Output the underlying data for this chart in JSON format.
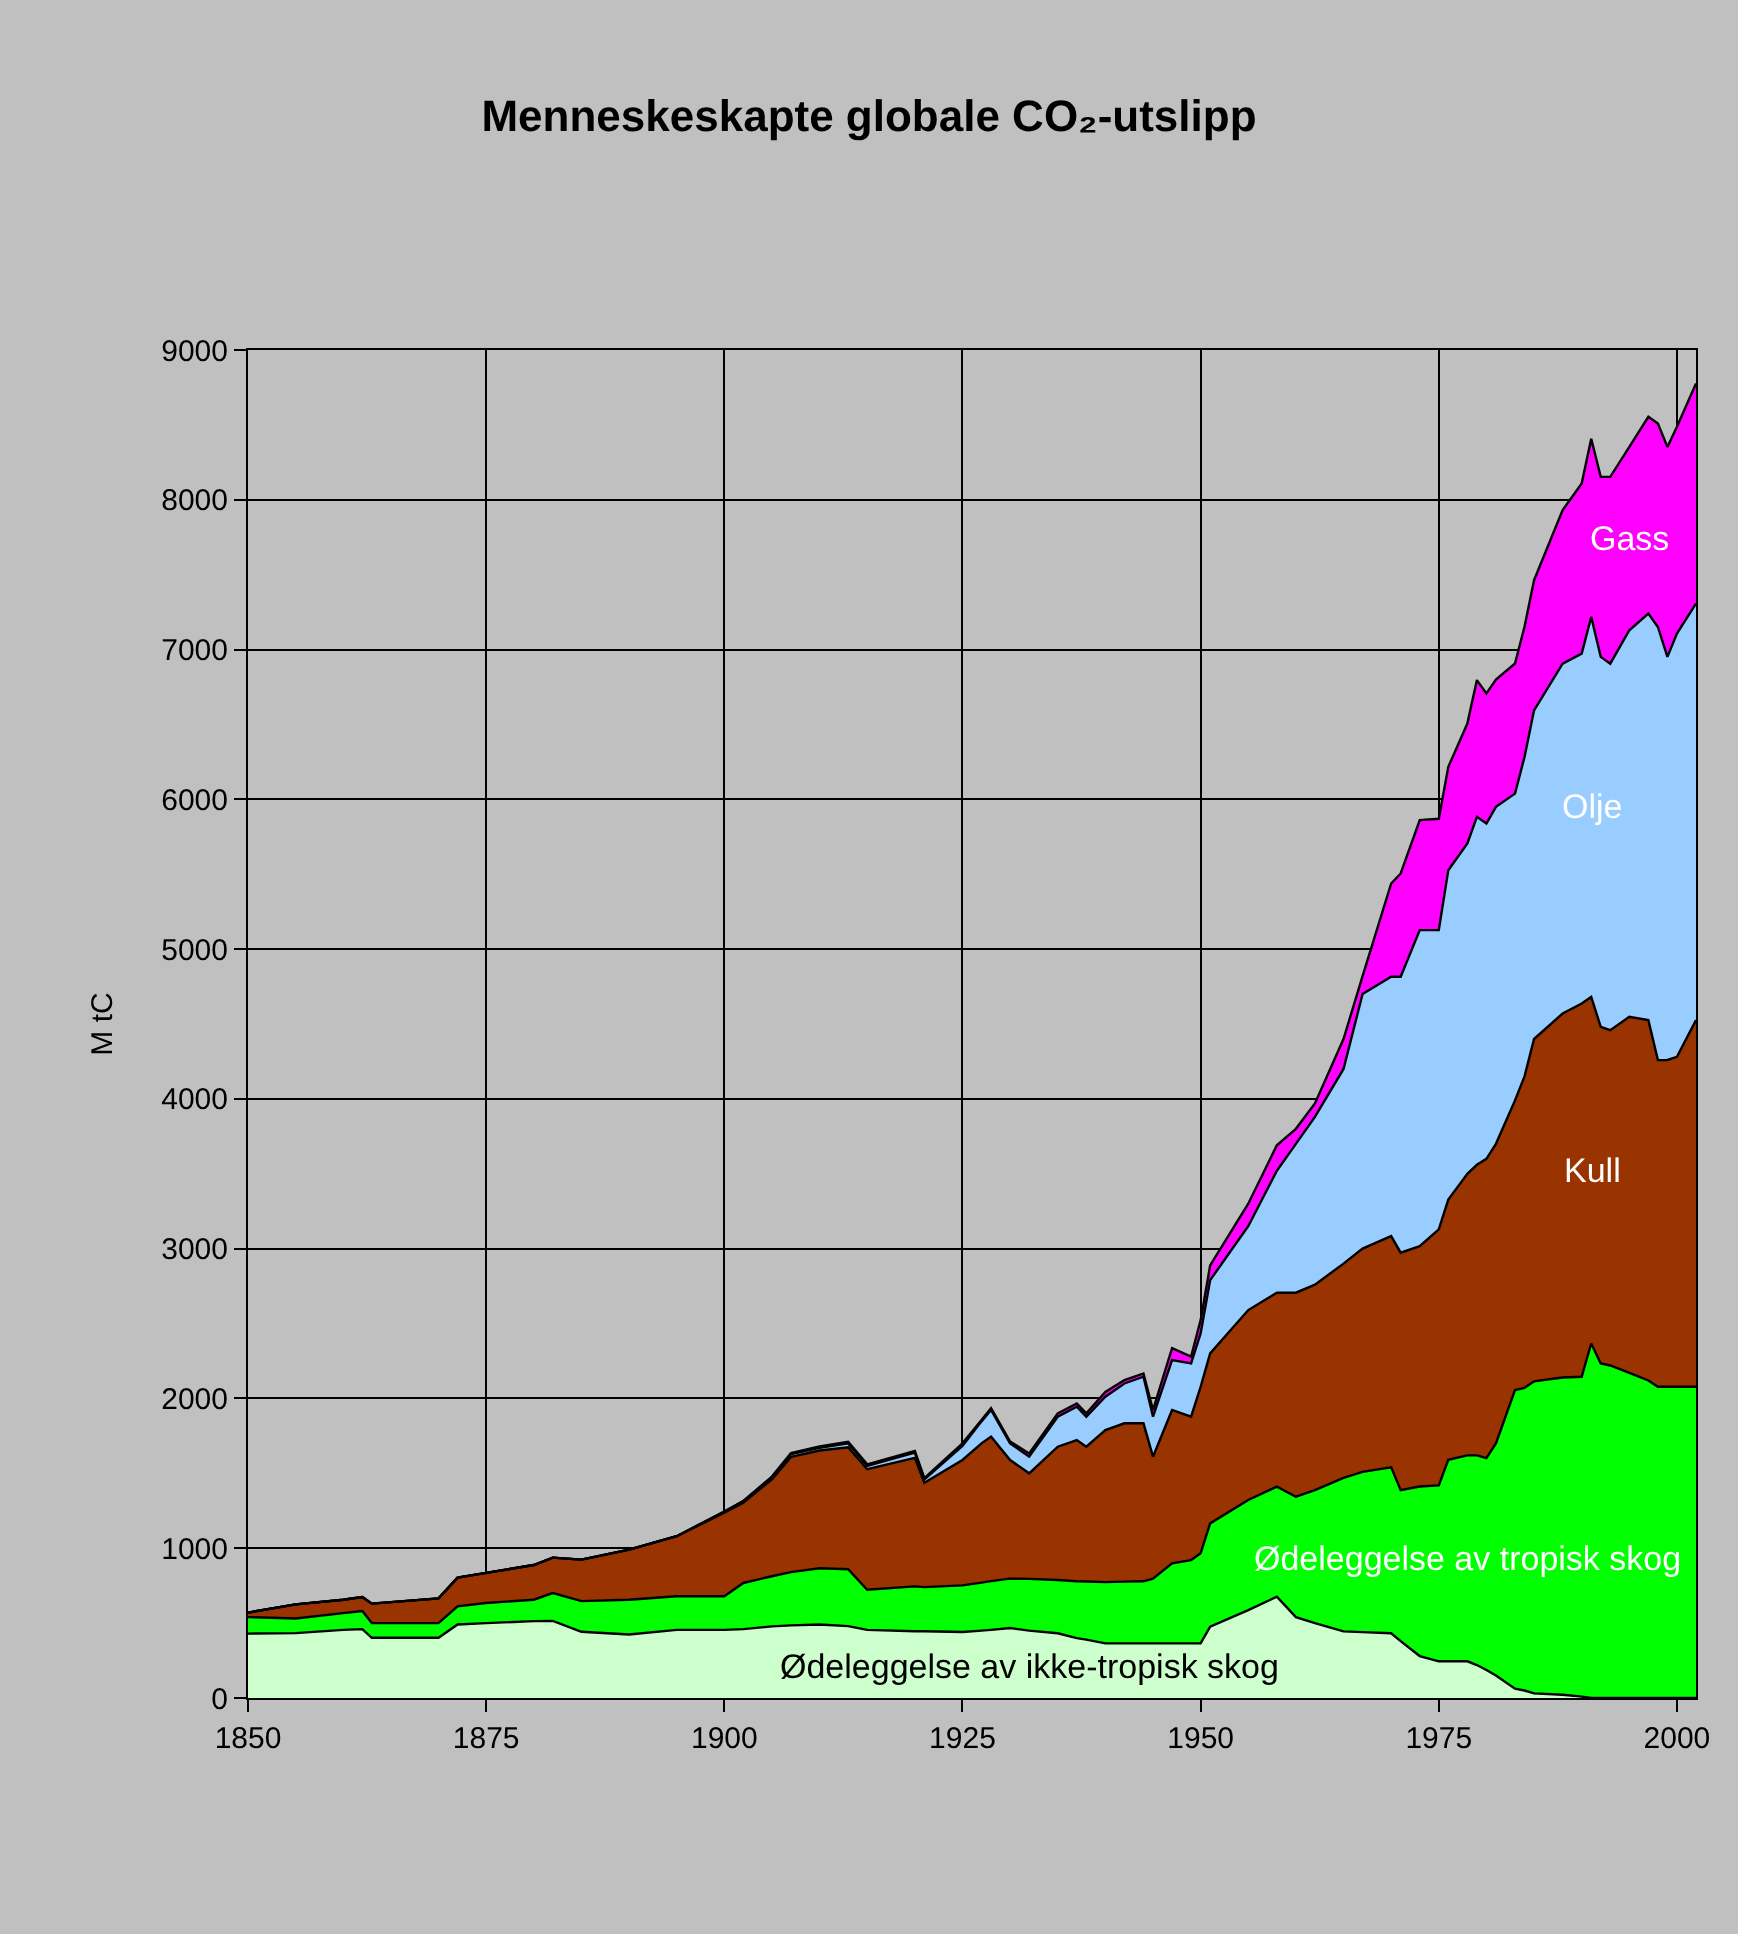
{
  "chart_data": {
    "type": "area",
    "stacked": true,
    "title": "Menneskeskapte globale CO₂-utslipp",
    "ylabel": "M tC",
    "x": [
      1850,
      1855,
      1860,
      1862,
      1863,
      1870,
      1872,
      1875,
      1880,
      1882,
      1885,
      1890,
      1895,
      1900,
      1902,
      1905,
      1907,
      1910,
      1913,
      1915,
      1920,
      1921,
      1925,
      1927,
      1928,
      1930,
      1932,
      1935,
      1937,
      1938,
      1940,
      1942,
      1944,
      1945,
      1947,
      1949,
      1950,
      1951,
      1955,
      1958,
      1960,
      1962,
      1965,
      1967,
      1970,
      1971,
      1973,
      1975,
      1976,
      1978,
      1979,
      1980,
      1981,
      1983,
      1984,
      1985,
      1988,
      1990,
      1991,
      1992,
      1993,
      1995,
      1997,
      1998,
      1999,
      2000,
      2002
    ],
    "series": [
      {
        "name": "Ødeleggelse av ikke-tropisk skog",
        "color": "#ccffcc",
        "values": [
          430,
          433,
          455,
          460,
          402,
          402,
          491,
          500,
          513,
          515,
          442,
          424,
          455,
          455,
          460,
          478,
          485,
          491,
          480,
          455,
          446,
          446,
          441,
          450,
          455,
          467,
          450,
          432,
          400,
          390,
          365,
          365,
          365,
          365,
          365,
          365,
          365,
          476,
          587,
          676,
          540,
          500,
          445,
          440,
          432,
          380,
          280,
          245,
          245,
          245,
          220,
          187,
          150,
          62,
          50,
          31,
          22,
          9,
          0,
          0,
          0,
          0,
          0,
          0,
          0,
          0,
          0
        ]
      },
      {
        "name": "Ødeleggelse av tropisk skog",
        "color": "#00ff00",
        "values": [
          110,
          98,
          112,
          120,
          98,
          98,
          121,
          134,
          143,
          186,
          205,
          232,
          224,
          224,
          308,
          335,
          355,
          375,
          380,
          268,
          299,
          294,
          311,
          320,
          325,
          330,
          345,
          356,
          380,
          388,
          409,
          412,
          414,
          432,
          534,
          556,
          601,
          690,
          735,
          735,
          804,
          888,
          1025,
          1070,
          1108,
          1008,
          1132,
          1174,
          1345,
          1375,
          1400,
          1415,
          1550,
          1994,
          2020,
          2083,
          2118,
          2136,
          2367,
          2234,
          2220,
          2170,
          2120,
          2078,
          2078,
          2078,
          2078
        ]
      },
      {
        "name": "Kull",
        "color": "#993300",
        "values": [
          30,
          94,
          89,
          94,
          130,
          165,
          192,
          201,
          232,
          236,
          277,
          335,
          401,
          558,
          536,
          647,
          770,
          786,
          814,
          804,
          858,
          697,
          837,
          930,
          965,
          792,
          705,
          890,
          942,
          900,
          1015,
          1057,
          1055,
          814,
          1024,
          957,
          1112,
          1135,
          1268,
          1295,
          1362,
          1372,
          1430,
          1490,
          1544,
          1585,
          1605,
          1710,
          1738,
          1880,
          1940,
          1998,
          2000,
          1934,
          2080,
          2286,
          2430,
          2492,
          2314,
          2247,
          2239,
          2378,
          2406,
          2181,
          2182,
          2203,
          2448
        ]
      },
      {
        "name": "Olje",
        "color": "#99ccff",
        "values": [
          0,
          0,
          0,
          0,
          0,
          0,
          0,
          0,
          0,
          0,
          0,
          0,
          0,
          8,
          11,
          15,
          19,
          18,
          26,
          22,
          35,
          23,
          94,
          147,
          178,
          111,
          111,
          200,
          223,
          200,
          223,
          266,
          311,
          267,
          333,
          356,
          356,
          489,
          560,
          814,
          994,
          1120,
          1300,
          1700,
          1731,
          1842,
          2110,
          1998,
          2199,
          2205,
          2323,
          2238,
          2250,
          2048,
          2133,
          2194,
          2336,
          2336,
          2537,
          2470,
          2447,
          2581,
          2714,
          2892,
          2691,
          2826,
          2781
        ]
      },
      {
        "name": "Gass",
        "color": "#ff00ff",
        "values": [
          0,
          0,
          0,
          0,
          0,
          0,
          0,
          0,
          0,
          0,
          0,
          0,
          0,
          0,
          0,
          3,
          6,
          10,
          10,
          11,
          12,
          8,
          17,
          9,
          13,
          12,
          22,
          22,
          22,
          22,
          31,
          23,
          22,
          45,
          80,
          45,
          89,
          98,
          150,
          170,
          100,
          90,
          200,
          120,
          623,
          690,
          734,
          743,
          690,
          801,
          913,
          869,
          850,
          869,
          869,
          869,
          1025,
          1136,
          1189,
          1202,
          1247,
          1224,
          1314,
          1358,
          1402,
          1380,
          1469
        ]
      }
    ],
    "xlim": [
      1850,
      2002
    ],
    "xticks": [
      1850,
      1875,
      1900,
      1925,
      1950,
      1975,
      2000
    ],
    "ylim": [
      0,
      9000
    ],
    "yticks": [
      0,
      1000,
      2000,
      3000,
      4000,
      5000,
      6000,
      7000,
      8000,
      9000
    ],
    "grid": true,
    "legend": false
  }
}
